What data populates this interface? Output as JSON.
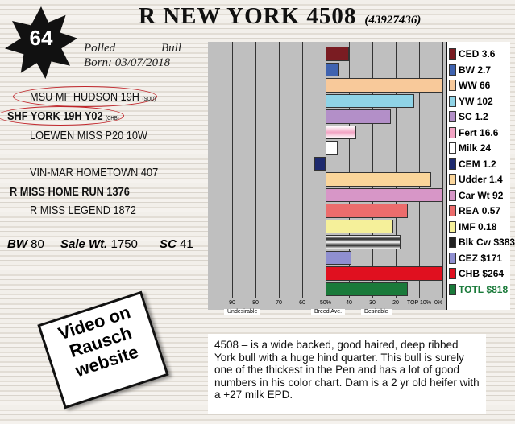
{
  "lot": {
    "number": "64",
    "name": "R NEW YORK 4508",
    "registration": "(43927436)",
    "type": "Polled",
    "sex": "Bull",
    "born": "Born: 03/07/2018"
  },
  "pedigree": {
    "sire_sire": "MSU MF HUDSON 19H",
    "sire_sire_tag": "(SOD)",
    "sire": "SHF YORK 19H Y02",
    "sire_tag": "(CHB)",
    "sire_dam": "LOEWEN MISS P20 10W",
    "dam_sire": "VIN-MAR HOMETOWN 407",
    "dam": "R MISS HOME RUN 1376",
    "dam_dam": "R MISS LEGEND 1872"
  },
  "stats": {
    "bw_label": "BW",
    "bw": "80",
    "sale_wt_label": "Sale Wt.",
    "sale_wt": "1750",
    "sc_label": "SC",
    "sc": "41"
  },
  "video": "Video on Rausch website",
  "chart_data": {
    "type": "bar",
    "orientation": "horizontal",
    "xlabel_ticks": [
      "90",
      "80",
      "70",
      "60",
      "50%",
      "40",
      "30",
      "20",
      "TOP 10%",
      "0%"
    ],
    "axis_labels": {
      "left": "Undesirable",
      "center": "Breed Ave.",
      "right": "Desirable"
    },
    "xlim": [
      100,
      0
    ],
    "center": 50,
    "series": [
      {
        "trait": "CED",
        "epd": "3.6",
        "percentile": 40,
        "color": "#7a1c22"
      },
      {
        "trait": "BW",
        "epd": "2.7",
        "percentile": 44,
        "color": "#3f63b0"
      },
      {
        "trait": "WW",
        "epd": "66",
        "percentile": 0,
        "color": "#f8c99a"
      },
      {
        "trait": "YW",
        "epd": "102",
        "percentile": 12,
        "color": "#8fd3e6"
      },
      {
        "trait": "SC",
        "epd": "1.2",
        "percentile": 22,
        "color": "#b38fc8"
      },
      {
        "trait": "Fert",
        "epd": "16.6",
        "percentile": 37,
        "color": "#f2a3c3"
      },
      {
        "trait": "Milk",
        "epd": "24",
        "percentile": 45,
        "color": "#ffffff"
      },
      {
        "trait": "CEM",
        "epd": "1.2",
        "percentile": 55,
        "color": "#1e2a6e"
      },
      {
        "trait": "Udder",
        "epd": "1.4",
        "percentile": 5,
        "color": "#fad59a"
      },
      {
        "trait": "Car Wt",
        "epd": "92",
        "percentile": 0,
        "color": "#d796c7"
      },
      {
        "trait": "REA",
        "epd": "0.57",
        "percentile": 15,
        "color": "#ec6c6c"
      },
      {
        "trait": "IMF",
        "epd": "0.18",
        "percentile": 21,
        "color": "#f5f09a"
      },
      {
        "trait": "Blk Cw",
        "epd": "$383",
        "percentile": 18,
        "color": "#222222"
      },
      {
        "trait": "CEZ",
        "epd": "$171",
        "percentile": 39,
        "color": "#8f8fd0"
      },
      {
        "trait": "CHB",
        "epd": "$264",
        "percentile": 0,
        "color": "#e0101f"
      },
      {
        "trait": "TOTL",
        "epd": "$818",
        "percentile": 15,
        "color": "#1a7a3a"
      }
    ]
  },
  "description": "4508 – is a wide backed, good haired, deep ribbed York bull with a huge hind quarter. This bull is surely one of the thickest in the Pen and has a lot of good numbers in his color chart. Dam is a 2 yr old heifer with a +27 milk EPD."
}
